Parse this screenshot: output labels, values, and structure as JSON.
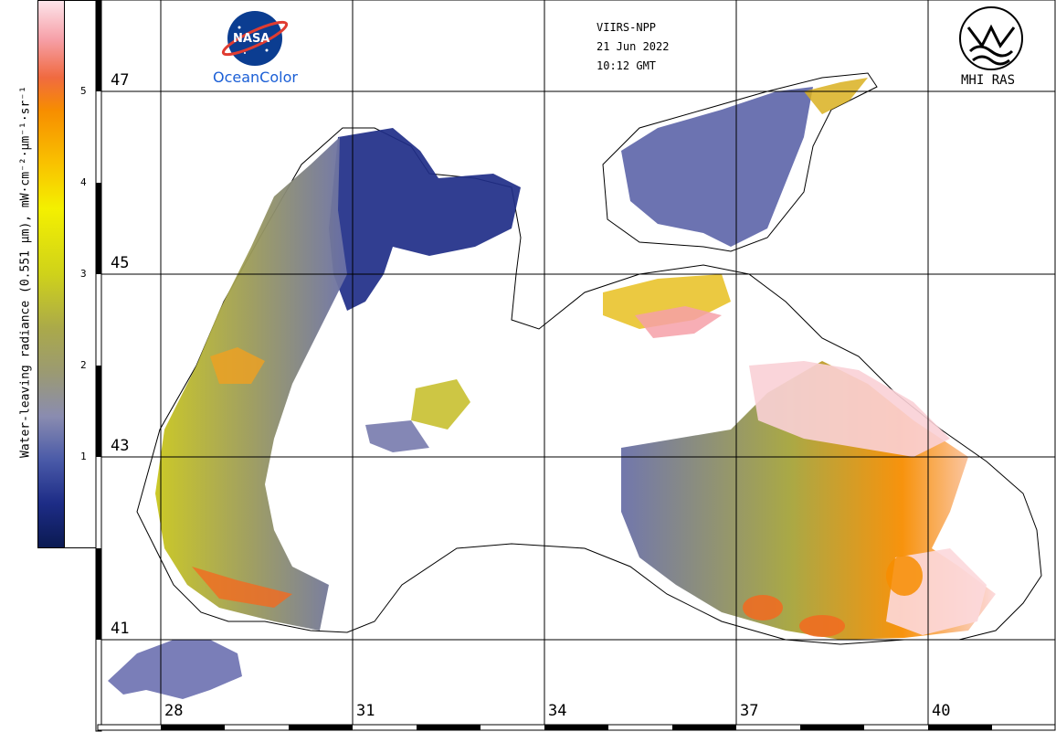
{
  "colorbar": {
    "title": "Water-leaving radiance (0.551 μm), mW·cm⁻²·μm⁻¹·sr⁻¹",
    "ticks": [
      "1",
      "2",
      "3",
      "4",
      "5"
    ]
  },
  "header": {
    "sensor": "VIIRS-NPP",
    "date": "21 Jun 2022",
    "time": "10:12 GMT"
  },
  "logos": {
    "nasa_text": "NASA",
    "left_caption": "OceanColor",
    "right_caption": "MHI RAS"
  },
  "grid": {
    "latitudes": [
      "47",
      "45",
      "43",
      "41"
    ],
    "longitudes": [
      "28",
      "31",
      "34",
      "37",
      "40"
    ]
  },
  "colors": {
    "low": "#1d2c86",
    "mid_low": "#8a8cb0",
    "mid": "#aaa94a",
    "high": "#f4f000",
    "very_high": "#f78d00",
    "max": "#f6a0a8"
  }
}
